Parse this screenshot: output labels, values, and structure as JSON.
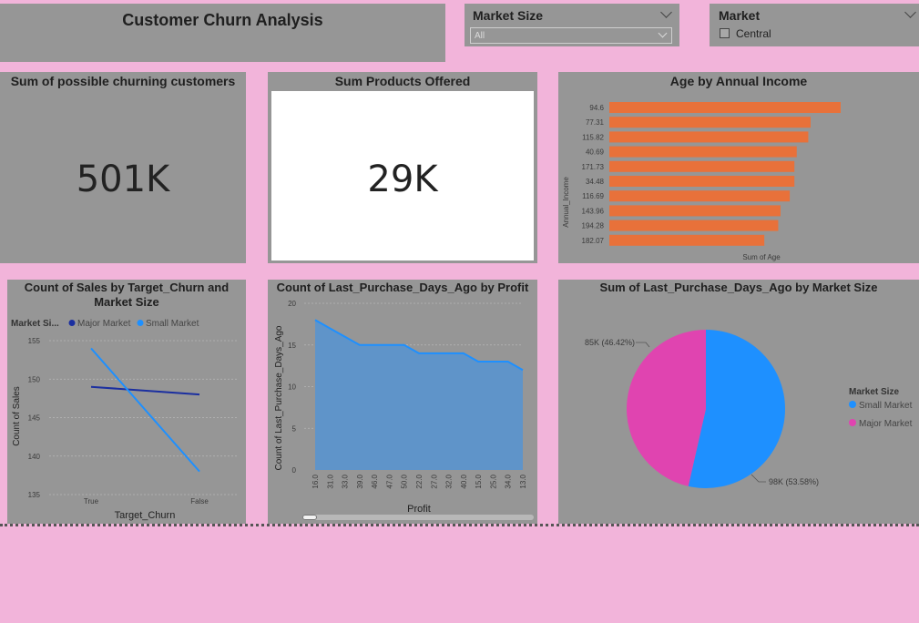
{
  "header": {
    "title": "Customer Churn Analysis"
  },
  "slicers": {
    "market_size": {
      "title": "Market Size",
      "value": "All"
    },
    "market": {
      "title": "Market",
      "option": "Central"
    }
  },
  "kpis": {
    "churning": {
      "title": "Sum of possible churning customers",
      "value": "501K"
    },
    "products": {
      "title": "Sum Products Offered",
      "value": "29K"
    }
  },
  "charts": {
    "age_income": {
      "title": "Age by Annual Income",
      "ylabel": "Annual_Income",
      "xlabel": "Sum of Age"
    },
    "sales_churn": {
      "title_line1": "Count of Sales by Target_Churn and",
      "title_line2": "Market Size",
      "legend_title": "Market Si...",
      "xlabel": "Target_Churn",
      "ylabel": "Count of Sales"
    },
    "purchase_profit": {
      "title": "Count of Last_Purchase_Days_Ago by Profit",
      "xlabel": "Profit",
      "ylabel": "Count of Last_Purchase_Days_Ago"
    },
    "pie_market": {
      "title": "Sum of Last_Purchase_Days_Ago by Market Size",
      "legend_title": "Market Size",
      "label_major": "85K (46.42%)",
      "label_small": "98K (53.58%)"
    }
  },
  "colors": {
    "bar": "#e8713a",
    "major": "#1b2fa0",
    "small": "#1e90ff",
    "area": "#5f94c9",
    "pie_small": "#1e90ff",
    "pie_major": "#e044b0"
  },
  "chart_data": [
    {
      "type": "bar",
      "title": "Age by Annual Income",
      "orientation": "horizontal",
      "categories": [
        "94.6",
        "77.31",
        "115.82",
        "40.69",
        "171.73",
        "34.48",
        "116.69",
        "143.96",
        "194.28",
        "182.07"
      ],
      "values": [
        100,
        87,
        86,
        81,
        80,
        80,
        78,
        74,
        73,
        67
      ],
      "xlabel": "Sum of Age",
      "ylabel": "Annual_Income"
    },
    {
      "type": "line",
      "title": "Count of Sales by Target_Churn and Market Size",
      "categories": [
        "True",
        "False"
      ],
      "series": [
        {
          "name": "Major Market",
          "values": [
            149,
            148
          ]
        },
        {
          "name": "Small Market",
          "values": [
            154,
            138
          ]
        }
      ],
      "yticks": [
        135,
        140,
        145,
        150,
        155
      ],
      "ylim": [
        135,
        155
      ],
      "xlabel": "Target_Churn",
      "ylabel": "Count of Sales",
      "legend": "top"
    },
    {
      "type": "area",
      "title": "Count of Last_Purchase_Days_Ago by Profit",
      "categories": [
        "16.0",
        "31.0",
        "33.0",
        "39.0",
        "46.0",
        "47.0",
        "50.0",
        "22.0",
        "27.0",
        "32.0",
        "40.0",
        "15.0",
        "25.0",
        "34.0",
        "13.0"
      ],
      "values": [
        18,
        17,
        16,
        15,
        15,
        15,
        15,
        14,
        14,
        14,
        14,
        13,
        13,
        13,
        12
      ],
      "yticks": [
        0,
        5,
        10,
        15,
        20
      ],
      "ylim": [
        0,
        20
      ],
      "xlabel": "Profit",
      "ylabel": "Count of Last_Purchase_Days_Ago"
    },
    {
      "type": "pie",
      "title": "Sum of Last_Purchase_Days_Ago by Market Size",
      "slices": [
        {
          "name": "Small Market",
          "value": 98,
          "percent": 53.58
        },
        {
          "name": "Major Market",
          "value": 85,
          "percent": 46.42
        }
      ],
      "legend": "right"
    }
  ]
}
